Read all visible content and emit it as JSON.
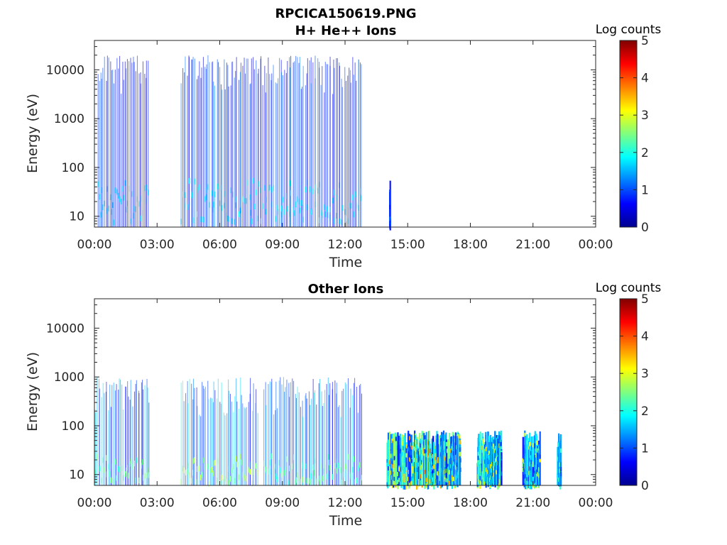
{
  "figure_title": "RPCICA150619.PNG",
  "chart_data": [
    {
      "type": "heatmap",
      "title": "H+ He++ Ions",
      "xlabel": "Time",
      "ylabel": "Energy (eV)",
      "x_ticks": [
        "00:00",
        "03:00",
        "06:00",
        "09:00",
        "12:00",
        "15:00",
        "18:00",
        "21:00",
        "00:00"
      ],
      "x_range_hours": [
        0,
        24
      ],
      "y_scale": "log",
      "y_range_eV": [
        6,
        40000
      ],
      "y_ticks": [
        10,
        100,
        1000,
        10000
      ],
      "y_tick_labels": [
        "10",
        "100",
        "1000",
        "10000"
      ],
      "colorbar": {
        "label": "Log counts",
        "range": [
          0,
          5
        ],
        "ticks": [
          "0",
          "1",
          "2",
          "3",
          "4",
          "5"
        ],
        "colormap": "jet"
      },
      "activity_intervals": [
        {
          "start_h": 0.15,
          "end_h": 2.6,
          "emax_eV": 20000,
          "level_min": 0.3,
          "level_max": 1.6
        },
        {
          "start_h": 4.15,
          "end_h": 12.8,
          "emax_eV": 20000,
          "level_min": 0.3,
          "level_max": 1.8
        },
        {
          "start_h": 14.08,
          "end_h": 14.12,
          "emax_eV": 80,
          "level_min": 0.6,
          "level_max": 1.4
        }
      ]
    },
    {
      "type": "heatmap",
      "title": "Other Ions",
      "xlabel": "Time",
      "ylabel": "Energy (eV)",
      "x_ticks": [
        "00:00",
        "03:00",
        "06:00",
        "09:00",
        "12:00",
        "15:00",
        "18:00",
        "21:00",
        "00:00"
      ],
      "x_range_hours": [
        0,
        24
      ],
      "y_scale": "log",
      "y_range_eV": [
        6,
        40000
      ],
      "y_ticks": [
        10,
        100,
        1000,
        10000
      ],
      "y_tick_labels": [
        "10",
        "100",
        "1000",
        "10000"
      ],
      "colorbar": {
        "label": "Log counts",
        "range": [
          0,
          5
        ],
        "ticks": [
          "0",
          "1",
          "2",
          "3",
          "4",
          "5"
        ],
        "colormap": "jet"
      },
      "activity_intervals": [
        {
          "start_h": 0.0,
          "end_h": 2.6,
          "emax_eV": 1000,
          "level_min": 0.5,
          "level_max": 2.5
        },
        {
          "start_h": 4.15,
          "end_h": 7.8,
          "emax_eV": 1000,
          "level_min": 0.5,
          "level_max": 2.9
        },
        {
          "start_h": 8.1,
          "end_h": 12.8,
          "emax_eV": 1000,
          "level_min": 0.5,
          "level_max": 2.5
        },
        {
          "start_h": 14.0,
          "end_h": 17.5,
          "emax_eV": 80,
          "level_min": 0.8,
          "level_max": 3.8
        },
        {
          "start_h": 18.3,
          "end_h": 19.5,
          "emax_eV": 80,
          "level_min": 0.8,
          "level_max": 3.4
        },
        {
          "start_h": 20.5,
          "end_h": 21.3,
          "emax_eV": 80,
          "level_min": 0.8,
          "level_max": 3.2
        },
        {
          "start_h": 22.15,
          "end_h": 22.3,
          "emax_eV": 80,
          "level_min": 0.8,
          "level_max": 2.4
        }
      ]
    }
  ]
}
